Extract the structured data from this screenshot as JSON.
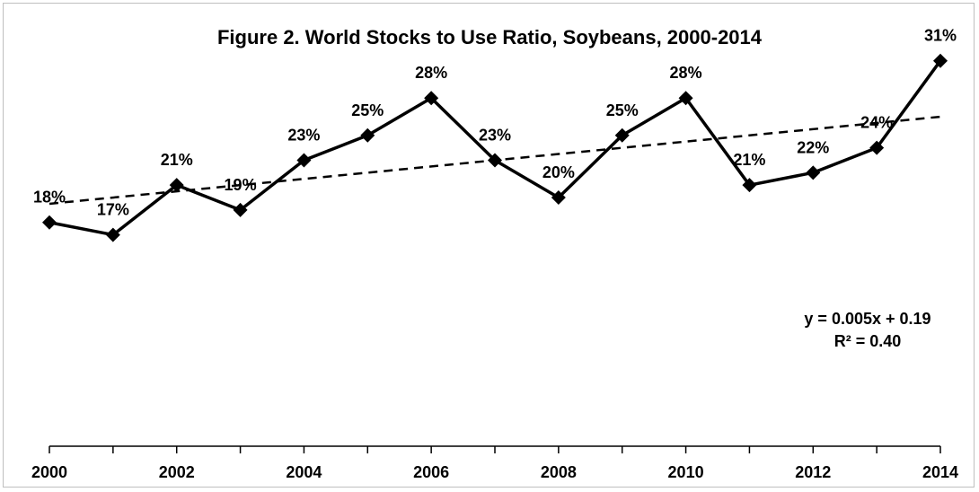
{
  "chart_data": {
    "type": "line",
    "title": "Figure 2.  World Stocks to Use Ratio, Soybeans, 2000-2014",
    "x": [
      2000,
      2001,
      2002,
      2003,
      2004,
      2005,
      2006,
      2007,
      2008,
      2009,
      2010,
      2011,
      2012,
      2013,
      2014
    ],
    "x_tick_labels": [
      "2000",
      "2002",
      "2004",
      "2006",
      "2008",
      "2010",
      "2012",
      "2014"
    ],
    "series": [
      {
        "values": [
          0.18,
          0.17,
          0.21,
          0.19,
          0.23,
          0.25,
          0.28,
          0.23,
          0.2,
          0.25,
          0.28,
          0.21,
          0.22,
          0.24,
          0.31
        ],
        "labels": [
          "18%",
          "17%",
          "21%",
          "19%",
          "23%",
          "25%",
          "28%",
          "23%",
          "20%",
          "25%",
          "28%",
          "21%",
          "22%",
          "24%",
          "31%"
        ],
        "color": "#000000",
        "marker": "diamond"
      }
    ],
    "trendline": {
      "type": "linear",
      "style": "dashed",
      "slope": 0.005,
      "intercept": 0.19,
      "equation": "y = 0.005x + 0.19",
      "r_squared": "R² = 0.40"
    },
    "ylim": [
      0.0,
      0.33
    ],
    "grid": false,
    "legend": "none"
  }
}
